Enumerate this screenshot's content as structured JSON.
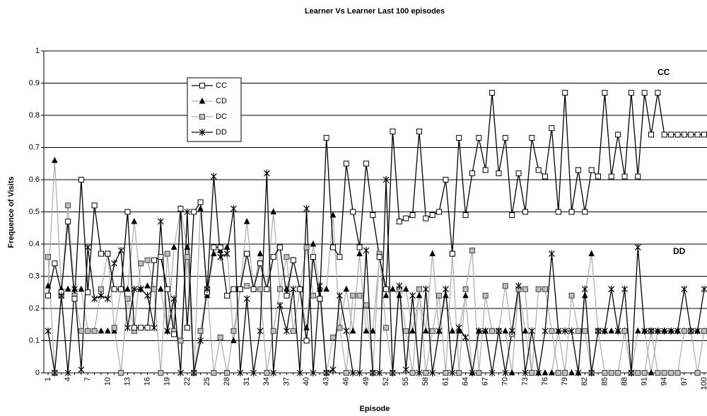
{
  "chart_data": {
    "type": "line",
    "title": "Learner Vs Learner Last 100 episodes",
    "x_label": "Episode",
    "y_label": "Frequence of Visits",
    "categories": [
      "1",
      null,
      null,
      "4",
      null,
      null,
      "7",
      null,
      null,
      "10",
      null,
      null,
      "13",
      null,
      null,
      "16",
      null,
      null,
      "19",
      null,
      null,
      "22",
      null,
      null,
      "25",
      null,
      null,
      "28",
      null,
      null,
      "31",
      null,
      null,
      "34",
      null,
      null,
      "37",
      null,
      null,
      "40",
      null,
      null,
      "43",
      null,
      null,
      "46",
      null,
      null,
      "49",
      null,
      null,
      "52",
      null,
      null,
      "55",
      null,
      null,
      "58",
      null,
      null,
      "61",
      null,
      null,
      "64",
      null,
      null,
      "67",
      null,
      null,
      "70",
      null,
      null,
      "73",
      null,
      null,
      "76",
      null,
      null,
      "79",
      null,
      null,
      "82",
      null,
      null,
      "85",
      null,
      null,
      "88",
      null,
      null,
      "91",
      null,
      null,
      "94",
      null,
      null,
      "97",
      null,
      null,
      "100"
    ],
    "ylim": [
      0,
      1
    ],
    "yticks": [
      0,
      0.1,
      0.2,
      0.3,
      0.4,
      0.5,
      0.6,
      0.7,
      0.8,
      0.9,
      1
    ],
    "grid": true,
    "annotations": [
      "CC",
      "DD"
    ],
    "series": [
      {
        "name": "CC",
        "color": "#000000",
        "marker": "square",
        "marker_fill": "#ffffff",
        "marker_stroke": "#000000",
        "values": [
          0.24,
          0.34,
          0.25,
          0.47,
          0.23,
          0.6,
          0.25,
          0.52,
          0.37,
          0.37,
          0.26,
          0.26,
          0.5,
          0.14,
          0.14,
          0.14,
          0.35,
          0.36,
          0.26,
          0.12,
          0.51,
          0.14,
          0.5,
          0.53,
          0.25,
          0.39,
          0.39,
          0.24,
          0.26,
          0.26,
          0.37,
          0.26,
          0.34,
          0.26,
          0.36,
          0.39,
          0.24,
          0.35,
          0.26,
          0.1,
          0.36,
          0.23,
          0.73,
          0.39,
          0.36,
          0.65,
          0.5,
          0.39,
          0.65,
          0.49,
          0.36,
          0.26,
          0.75,
          0.47,
          0.48,
          0.49,
          0.75,
          0.48,
          0.49,
          0.5,
          0.6,
          0.37,
          0.73,
          0.49,
          0.62,
          0.73,
          0.63,
          0.87,
          0.62,
          0.73,
          0.49,
          0.62,
          0.5,
          0.73,
          0.63,
          0.61,
          0.76,
          0.5,
          0.87,
          0.5,
          0.63,
          0.5,
          0.63,
          0.61,
          0.87,
          0.61,
          0.74,
          0.61,
          0.87,
          0.61,
          0.87,
          0.74,
          0.87,
          0.74,
          0.74,
          0.74,
          0.74,
          0.74,
          0.74,
          0.74
        ]
      },
      {
        "name": "CD",
        "color": "#b0b0b0",
        "marker": "triangle",
        "marker_fill": "#000000",
        "marker_stroke": "#000000",
        "values": [
          0.27,
          0.66,
          0.26,
          0.26,
          0.26,
          0.26,
          0.13,
          0.13,
          0.13,
          0.13,
          0.13,
          0.26,
          0.26,
          0.47,
          0.26,
          0.27,
          0.26,
          0.26,
          0.13,
          0.39,
          0.51,
          0.39,
          0,
          0.51,
          0.24,
          0.37,
          0.38,
          0.39,
          0.1,
          0.26,
          0.47,
          0.26,
          0.37,
          0.26,
          0.5,
          0.26,
          0.26,
          0.35,
          0.26,
          0.14,
          0.4,
          0.26,
          0.26,
          0.49,
          0.14,
          0.26,
          0.13,
          0.37,
          0.13,
          0.13,
          0.36,
          0.24,
          0.26,
          0.24,
          0.26,
          0.13,
          0.24,
          0.13,
          0.37,
          0.13,
          0.24,
          0.13,
          0.13,
          0.24,
          0,
          0.13,
          0.13,
          0.13,
          0.13,
          0.13,
          0,
          0.26,
          0.13,
          0,
          0,
          0,
          0,
          0.13,
          0,
          0,
          0,
          0.24,
          0.37,
          0.13,
          0.13,
          0.13,
          0.13,
          0.13,
          0,
          0.13,
          0.13,
          0,
          0.13,
          0.13,
          0.13,
          0.13,
          0.13,
          0.13,
          0.13,
          0.13
        ]
      },
      {
        "name": "DC",
        "color": "#b0b0b0",
        "marker": "square",
        "marker_fill": "#c0c0c0",
        "marker_stroke": "#404040",
        "values": [
          0.36,
          0,
          0.24,
          0.52,
          0.24,
          0.13,
          0.13,
          0.13,
          0.26,
          0.37,
          0.14,
          0,
          0.23,
          0.13,
          0.34,
          0.35,
          0.26,
          0,
          0.37,
          0.13,
          0.1,
          0.36,
          0,
          0.13,
          0.26,
          0,
          0.11,
          0,
          0.13,
          0.26,
          0.27,
          0.26,
          0.26,
          0,
          0.13,
          0.26,
          0.36,
          0.13,
          0.26,
          0.39,
          0.24,
          0.23,
          0,
          0.11,
          0.14,
          0,
          0.24,
          0.24,
          0.21,
          0,
          0.37,
          0.14,
          0,
          0.26,
          0.13,
          0,
          0.26,
          0,
          0.13,
          0.24,
          0,
          0.37,
          0,
          0.26,
          0.38,
          0,
          0.24,
          0.13,
          0.13,
          0.27,
          0.12,
          0.26,
          0.26,
          0,
          0.26,
          0.26,
          0.13,
          0,
          0,
          0.24,
          0.13,
          0.13,
          0,
          0.13,
          0,
          0,
          0,
          0.13,
          0,
          0,
          0,
          0.13,
          0,
          0,
          0,
          0,
          0.13,
          0.13,
          0,
          0.13
        ]
      },
      {
        "name": "DD",
        "color": "#000000",
        "marker": "asterisk",
        "marker_fill": "none",
        "marker_stroke": "#000000",
        "values": [
          0.13,
          0,
          0.24,
          0,
          0.26,
          0.01,
          0.39,
          0.23,
          0.24,
          0.23,
          0.34,
          0.38,
          0.14,
          0.26,
          0.26,
          0.24,
          0.14,
          0.47,
          0.13,
          0.23,
          0,
          0.5,
          0,
          0.1,
          0.26,
          0.61,
          0.36,
          0.37,
          0.51,
          0,
          0.23,
          0,
          0.13,
          0.62,
          0,
          0.21,
          0.13,
          0.26,
          0,
          0.51,
          0,
          0.27,
          0,
          0.01,
          0.24,
          0.13,
          0,
          0,
          0.38,
          0,
          0,
          0.6,
          0,
          0.27,
          0.01,
          0.24,
          0,
          0.26,
          0,
          0.13,
          0.26,
          0,
          0.14,
          0.11,
          0,
          0.13,
          0.13,
          0,
          0.13,
          0,
          0.13,
          0.27,
          0,
          0.13,
          0,
          0.13,
          0.37,
          0.13,
          0.13,
          0.13,
          0,
          0.26,
          0,
          0.13,
          0.13,
          0.26,
          0.13,
          0.26,
          0,
          0.39,
          0.13,
          0.13,
          0.13,
          0.13,
          0.13,
          0.13,
          0.26,
          0.13,
          0.13,
          0.26
        ]
      }
    ]
  }
}
